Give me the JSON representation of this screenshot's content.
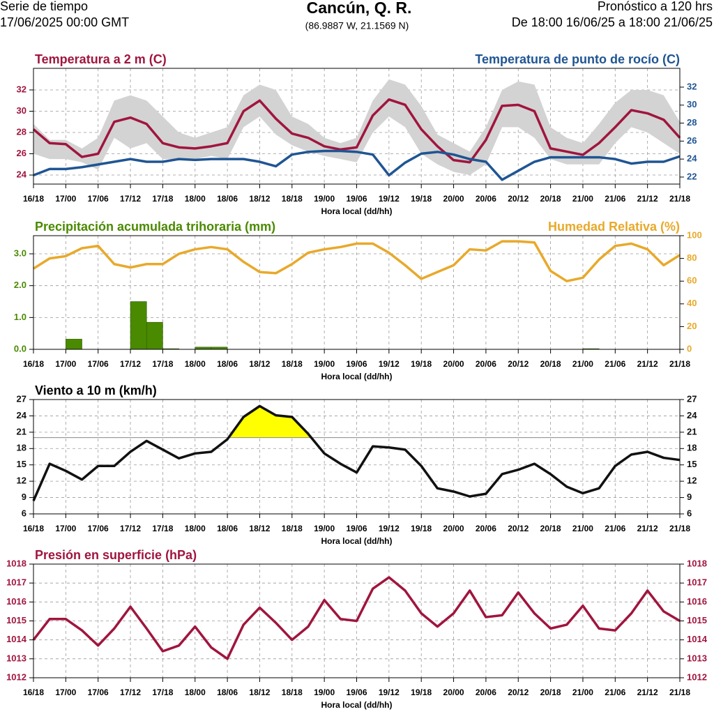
{
  "header": {
    "left_title": "Serie de tiempo",
    "left_subtitle": "17/06/2025 00:00 GMT",
    "title": "Cancún, Q. R.",
    "subtitle": "(86.9887 W, 21.1569 N)",
    "right_title": "Pronóstico a 120 hrs",
    "right_subtitle": "De 18:00 16/06/25 a 18:00 21/06/25"
  },
  "chart_data": [
    {
      "type": "line",
      "xlabel": "Hora local (dd/hh)",
      "grid": true,
      "x": [
        0,
        3,
        6,
        9,
        12,
        15,
        18,
        21,
        24,
        27,
        30,
        33,
        36,
        39,
        42,
        45,
        48,
        51,
        54,
        57,
        60,
        63,
        66,
        69,
        72,
        75,
        78,
        81,
        84,
        87,
        90,
        93,
        96,
        99,
        102,
        105,
        108,
        111,
        114,
        117,
        120
      ],
      "xlim": [
        0,
        120
      ],
      "xticks": [
        {
          "value": 0,
          "label": "16/18"
        },
        {
          "value": 6,
          "label": "17/00"
        },
        {
          "value": 12,
          "label": "17/06"
        },
        {
          "value": 18,
          "label": "17/12"
        },
        {
          "value": 24,
          "label": "17/18"
        },
        {
          "value": 30,
          "label": "18/00"
        },
        {
          "value": 36,
          "label": "18/06"
        },
        {
          "value": 42,
          "label": "18/12"
        },
        {
          "value": 48,
          "label": "18/18"
        },
        {
          "value": 54,
          "label": "19/00"
        },
        {
          "value": 60,
          "label": "19/06"
        },
        {
          "value": 66,
          "label": "19/12"
        },
        {
          "value": 72,
          "label": "19/18"
        },
        {
          "value": 78,
          "label": "20/00"
        },
        {
          "value": 84,
          "label": "20/06"
        },
        {
          "value": 90,
          "label": "20/12"
        },
        {
          "value": 96,
          "label": "20/18"
        },
        {
          "value": 102,
          "label": "21/00"
        },
        {
          "value": 108,
          "label": "21/06"
        },
        {
          "value": 114,
          "label": "21/12"
        },
        {
          "value": 120,
          "label": "21/18"
        }
      ],
      "ylim": [
        23.15,
        34.03
      ],
      "yticks": [
        24,
        26,
        28,
        30,
        32
      ],
      "y2lim": [
        21.22,
        34.09
      ],
      "y2ticks": [
        22,
        24,
        26,
        28,
        30,
        32
      ],
      "range": {
        "color": "#d3d3d3",
        "high": [
          28.8,
          27.3,
          27.3,
          26.5,
          27.5,
          31.0,
          31.5,
          31.0,
          29.5,
          28.0,
          27.5,
          28.0,
          28.5,
          31.5,
          32.5,
          32.0,
          29.5,
          28.8,
          27.5,
          27.0,
          27.5,
          31.0,
          33.0,
          32.5,
          30.5,
          27.8,
          27.0,
          26.2,
          28.5,
          32.0,
          32.8,
          32.5,
          28.5,
          27.5,
          27.0,
          28.8,
          30.8,
          32.0,
          32.0,
          31.5,
          29.0
        ],
        "low": [
          26.0,
          25.5,
          25.5,
          25.2,
          24.5,
          27.5,
          26.5,
          27.0,
          25.5,
          25.5,
          25.5,
          25.8,
          25.5,
          28.5,
          29.5,
          27.8,
          26.8,
          26.2,
          25.8,
          25.5,
          25.2,
          28.0,
          29.5,
          28.5,
          26.0,
          25.0,
          24.3,
          24.0,
          25.0,
          28.5,
          28.5,
          27.5,
          25.5,
          25.0,
          25.0,
          25.0,
          27.0,
          28.5,
          28.0,
          27.0,
          26.0
        ]
      },
      "series": [
        {
          "name": "Temperatura a 2 m (C)",
          "color": "#a0153e",
          "values": [
            28.3,
            27.0,
            26.9,
            25.7,
            26.0,
            29.0,
            29.4,
            28.8,
            27.0,
            26.6,
            26.5,
            26.7,
            27.0,
            30.0,
            31.0,
            29.3,
            27.9,
            27.5,
            26.7,
            26.4,
            26.6,
            29.6,
            31.1,
            30.6,
            28.3,
            26.7,
            25.4,
            25.2,
            27.3,
            30.5,
            30.6,
            30.0,
            26.5,
            26.2,
            25.9,
            27.0,
            28.5,
            30.1,
            29.8,
            29.2,
            27.5
          ]
        },
        {
          "name": "Temperatura de punto de rocío (C)",
          "color": "#1f5593",
          "axis": "y2",
          "values": [
            22.2,
            22.9,
            22.9,
            23.1,
            23.4,
            23.7,
            24.0,
            23.7,
            23.7,
            24.0,
            23.9,
            24.0,
            24.0,
            24.0,
            23.7,
            23.2,
            24.5,
            24.8,
            24.9,
            24.9,
            24.8,
            24.5,
            22.2,
            23.6,
            24.6,
            24.8,
            24.5,
            24.0,
            23.7,
            21.7,
            22.7,
            23.7,
            24.2,
            24.2,
            24.2,
            24.2,
            24.0,
            23.5,
            23.7,
            23.7,
            24.3
          ]
        }
      ]
    },
    {
      "type": "line",
      "xlabel": "Hora local (dd/hh)",
      "grid": true,
      "x": [
        0,
        3,
        6,
        9,
        12,
        15,
        18,
        21,
        24,
        27,
        30,
        33,
        36,
        39,
        42,
        45,
        48,
        51,
        54,
        57,
        60,
        63,
        66,
        69,
        72,
        75,
        78,
        81,
        84,
        87,
        90,
        93,
        96,
        99,
        102,
        105,
        108,
        111,
        114,
        117,
        120
      ],
      "xlim": [
        0,
        120
      ],
      "xticks": [
        {
          "value": 0,
          "label": "16/18"
        },
        {
          "value": 6,
          "label": "17/00"
        },
        {
          "value": 12,
          "label": "17/06"
        },
        {
          "value": 18,
          "label": "17/12"
        },
        {
          "value": 24,
          "label": "17/18"
        },
        {
          "value": 30,
          "label": "18/00"
        },
        {
          "value": 36,
          "label": "18/06"
        },
        {
          "value": 42,
          "label": "18/12"
        },
        {
          "value": 48,
          "label": "18/18"
        },
        {
          "value": 54,
          "label": "19/00"
        },
        {
          "value": 60,
          "label": "19/06"
        },
        {
          "value": 66,
          "label": "19/12"
        },
        {
          "value": 72,
          "label": "19/18"
        },
        {
          "value": 78,
          "label": "20/00"
        },
        {
          "value": 84,
          "label": "20/06"
        },
        {
          "value": 90,
          "label": "20/12"
        },
        {
          "value": 96,
          "label": "20/18"
        },
        {
          "value": 102,
          "label": "21/00"
        },
        {
          "value": 108,
          "label": "21/06"
        },
        {
          "value": 114,
          "label": "21/12"
        },
        {
          "value": 120,
          "label": "21/18"
        }
      ],
      "ylim": [
        0,
        3.57
      ],
      "yticks": [
        {
          "value": 0,
          "label": "0.0"
        },
        {
          "value": 1,
          "label": "1.0"
        },
        {
          "value": 2,
          "label": "2.0"
        },
        {
          "value": 3,
          "label": "3.0"
        }
      ],
      "y2lim": [
        0,
        100
      ],
      "y2ticks": [
        0,
        20,
        40,
        60,
        80,
        100
      ],
      "series": [
        {
          "name": "Precipitación acumulada trihoraria (mm)",
          "color": "#4a8a00",
          "type": "bar",
          "x": [
            6,
            18,
            21,
            24,
            30,
            33,
            102
          ],
          "values": [
            0.32,
            1.5,
            0.85,
            0.02,
            0.07,
            0.07,
            0.02
          ]
        },
        {
          "name": "Humedad Relativa (%)",
          "color": "#e8a92a",
          "axis": "y2",
          "values": [
            71,
            80,
            82,
            89,
            91,
            75,
            72,
            75,
            75,
            84,
            88,
            90,
            88,
            77,
            68,
            67,
            75,
            85,
            88,
            90,
            93,
            93,
            85,
            74,
            62,
            68,
            74,
            88,
            87,
            95,
            95,
            94,
            69,
            60,
            63,
            79,
            91,
            93,
            88,
            74,
            83
          ]
        }
      ]
    },
    {
      "type": "line",
      "xlabel": "Hora local (dd/hh)",
      "grid": true,
      "mirror_y": true,
      "x": [
        0,
        3,
        6,
        9,
        12,
        15,
        18,
        21,
        24,
        27,
        30,
        33,
        36,
        39,
        42,
        45,
        48,
        51,
        54,
        57,
        60,
        63,
        66,
        69,
        72,
        75,
        78,
        81,
        84,
        87,
        90,
        93,
        96,
        99,
        102,
        105,
        108,
        111,
        114,
        117,
        120
      ],
      "xlim": [
        0,
        120
      ],
      "xticks": [
        {
          "value": 0,
          "label": "16/18"
        },
        {
          "value": 6,
          "label": "17/00"
        },
        {
          "value": 12,
          "label": "17/06"
        },
        {
          "value": 18,
          "label": "17/12"
        },
        {
          "value": 24,
          "label": "17/18"
        },
        {
          "value": 30,
          "label": "18/00"
        },
        {
          "value": 36,
          "label": "18/06"
        },
        {
          "value": 42,
          "label": "18/12"
        },
        {
          "value": 48,
          "label": "18/18"
        },
        {
          "value": 54,
          "label": "19/00"
        },
        {
          "value": 60,
          "label": "19/06"
        },
        {
          "value": 66,
          "label": "19/12"
        },
        {
          "value": 72,
          "label": "19/18"
        },
        {
          "value": 78,
          "label": "20/00"
        },
        {
          "value": 84,
          "label": "20/06"
        },
        {
          "value": 90,
          "label": "20/12"
        },
        {
          "value": 96,
          "label": "20/18"
        },
        {
          "value": 102,
          "label": "21/00"
        },
        {
          "value": 108,
          "label": "21/06"
        },
        {
          "value": 114,
          "label": "21/12"
        },
        {
          "value": 120,
          "label": "21/18"
        }
      ],
      "ylim": [
        6,
        27
      ],
      "yticks": [
        6,
        9,
        12,
        15,
        18,
        21,
        24,
        27
      ],
      "threshold": 20,
      "threshold_fill": "#ffff00",
      "series": [
        {
          "name": "Viento a 10 m (km/h)",
          "color": "#111111",
          "values": [
            8.4,
            15.2,
            13.9,
            12.3,
            14.8,
            14.8,
            17.4,
            19.4,
            17.8,
            16.2,
            17.1,
            17.4,
            19.7,
            23.8,
            25.8,
            24.1,
            23.8,
            20.7,
            17.1,
            15.2,
            13.6,
            18.4,
            18.2,
            17.8,
            14.8,
            10.7,
            10.1,
            9.2,
            9.7,
            13.3,
            14.1,
            15.2,
            13.3,
            11.0,
            9.8,
            10.7,
            14.8,
            16.9,
            17.4,
            16.3,
            15.9
          ]
        }
      ]
    },
    {
      "type": "line",
      "xlabel": "Hora local (dd/hh)",
      "grid": true,
      "mirror_y": true,
      "x": [
        0,
        3,
        6,
        9,
        12,
        15,
        18,
        21,
        24,
        27,
        30,
        33,
        36,
        39,
        42,
        45,
        48,
        51,
        54,
        57,
        60,
        63,
        66,
        69,
        72,
        75,
        78,
        81,
        84,
        87,
        90,
        93,
        96,
        99,
        102,
        105,
        108,
        111,
        114,
        117,
        120
      ],
      "xlim": [
        0,
        120
      ],
      "xticks": [
        {
          "value": 0,
          "label": "16/18"
        },
        {
          "value": 6,
          "label": "17/00"
        },
        {
          "value": 12,
          "label": "17/06"
        },
        {
          "value": 18,
          "label": "17/12"
        },
        {
          "value": 24,
          "label": "17/18"
        },
        {
          "value": 30,
          "label": "18/00"
        },
        {
          "value": 36,
          "label": "18/06"
        },
        {
          "value": 42,
          "label": "18/12"
        },
        {
          "value": 48,
          "label": "18/18"
        },
        {
          "value": 54,
          "label": "19/00"
        },
        {
          "value": 60,
          "label": "19/06"
        },
        {
          "value": 66,
          "label": "19/12"
        },
        {
          "value": 72,
          "label": "19/18"
        },
        {
          "value": 78,
          "label": "20/00"
        },
        {
          "value": 84,
          "label": "20/06"
        },
        {
          "value": 90,
          "label": "20/12"
        },
        {
          "value": 96,
          "label": "20/18"
        },
        {
          "value": 102,
          "label": "21/00"
        },
        {
          "value": 108,
          "label": "21/06"
        },
        {
          "value": 114,
          "label": "21/12"
        },
        {
          "value": 120,
          "label": "21/18"
        }
      ],
      "ylim": [
        1012,
        1018
      ],
      "yticks": [
        1012,
        1013,
        1014,
        1015,
        1016,
        1017,
        1018
      ],
      "series": [
        {
          "name": "Presión en superficie (hPa)",
          "color": "#a0153e",
          "values": [
            1014.0,
            1015.1,
            1015.1,
            1014.5,
            1013.7,
            1014.6,
            1015.75,
            1014.6,
            1013.4,
            1013.7,
            1014.7,
            1013.6,
            1013.0,
            1014.8,
            1015.7,
            1014.9,
            1014.0,
            1014.7,
            1016.1,
            1015.1,
            1015.0,
            1016.7,
            1017.3,
            1016.6,
            1015.4,
            1014.7,
            1015.4,
            1016.6,
            1015.2,
            1015.3,
            1016.5,
            1015.4,
            1014.6,
            1014.8,
            1015.8,
            1014.6,
            1014.5,
            1015.4,
            1016.6,
            1015.5,
            1015.0
          ]
        }
      ]
    }
  ]
}
